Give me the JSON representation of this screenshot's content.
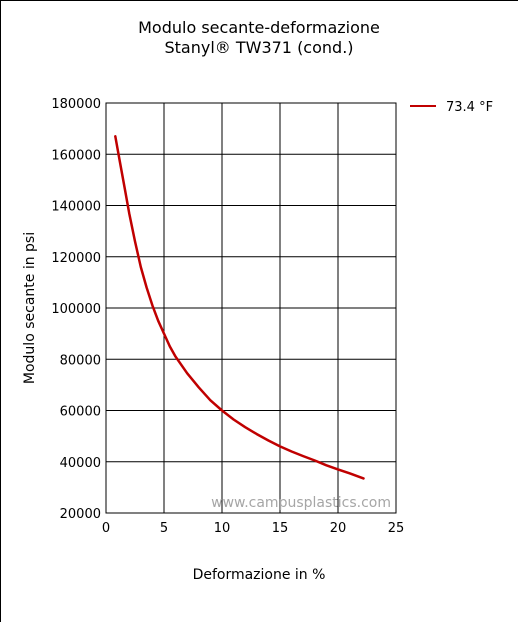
{
  "chart_data": {
    "type": "line",
    "title": "Modulo secante-deformazione",
    "subtitle": "Stanyl® TW371 (cond.)",
    "xlabel": "Deformazione in %",
    "ylabel": "Modulo secante in psi",
    "xlim": [
      0,
      25
    ],
    "ylim": [
      20000,
      180000
    ],
    "xticks": [
      "0",
      "5",
      "10",
      "15",
      "20",
      "25"
    ],
    "yticks": [
      "20000",
      "40000",
      "60000",
      "80000",
      "100000",
      "120000",
      "140000",
      "160000",
      "180000"
    ],
    "grid": true,
    "legend_position": "top-right",
    "watermark": "www.campusplastics.com",
    "series": [
      {
        "name": "73.4 °F",
        "color": "#c00000",
        "x": [
          0.8,
          1.2,
          1.6,
          2.0,
          2.5,
          3.0,
          3.5,
          4.0,
          4.5,
          5.0,
          5.5,
          6.0,
          7.0,
          8.0,
          9.0,
          10.0,
          11.0,
          12.0,
          13.0,
          14.0,
          15.0,
          16.0,
          17.0,
          18.0,
          19.0,
          20.0,
          21.0,
          22.2
        ],
        "y": [
          167000,
          157000,
          147000,
          137000,
          126000,
          116000,
          108000,
          101000,
          95000,
          90000,
          85000,
          81000,
          74500,
          69000,
          64000,
          60000,
          56500,
          53500,
          50800,
          48300,
          46000,
          44000,
          42200,
          40500,
          38600,
          37000,
          35500,
          33500
        ]
      }
    ]
  }
}
